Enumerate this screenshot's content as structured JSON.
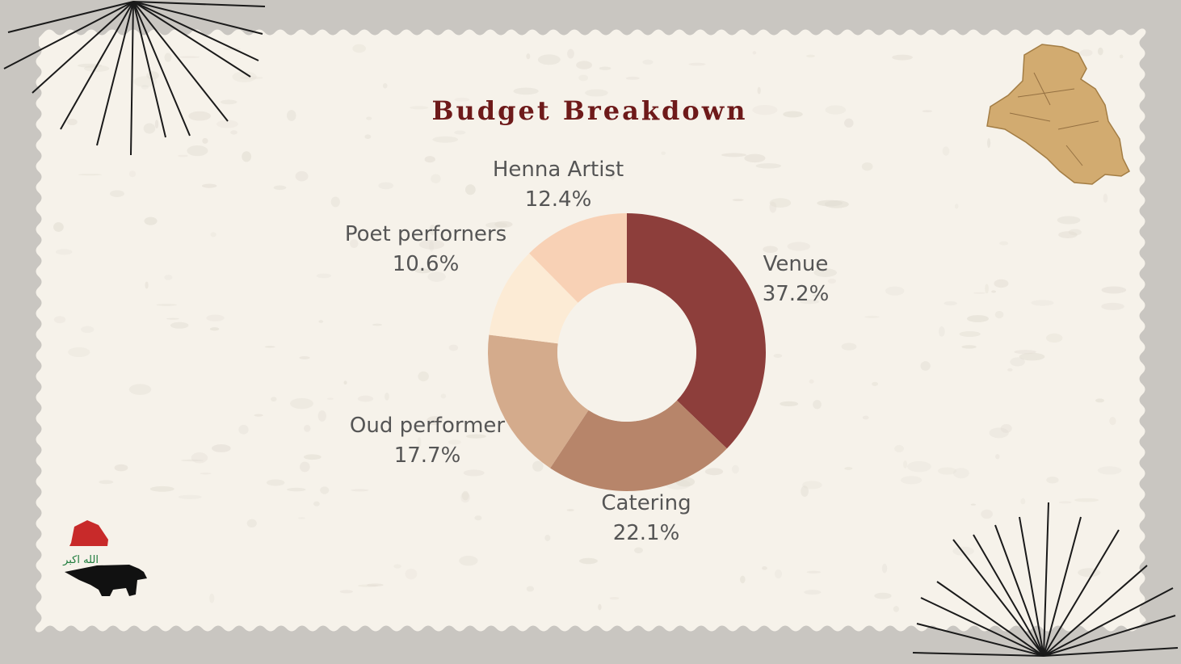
{
  "slide": {
    "title": "Budget Breakdown",
    "logo_text": "الله اكبر",
    "colors": {
      "title": "#6e1a1a",
      "paper": "#f6f2ea",
      "frame": "#c9c6c1"
    }
  },
  "chart_data": {
    "type": "pie",
    "style": "donut",
    "title": "Budget Breakdown",
    "slices": [
      {
        "label": "Venue",
        "value": 37.2,
        "display": "37.2%",
        "color": "#8d3e3b"
      },
      {
        "label": "Catering",
        "value": 22.1,
        "display": "22.1%",
        "color": "#b7856a"
      },
      {
        "label": "Oud performer",
        "value": 17.7,
        "display": "17.7%",
        "color": "#d4ab8c"
      },
      {
        "label": "Poet perforners",
        "value": 10.6,
        "display": "10.6%",
        "color": "#fcebd5"
      },
      {
        "label": "Henna Artist",
        "value": 12.4,
        "display": "12.4%",
        "color": "#f8d1b5"
      }
    ]
  }
}
